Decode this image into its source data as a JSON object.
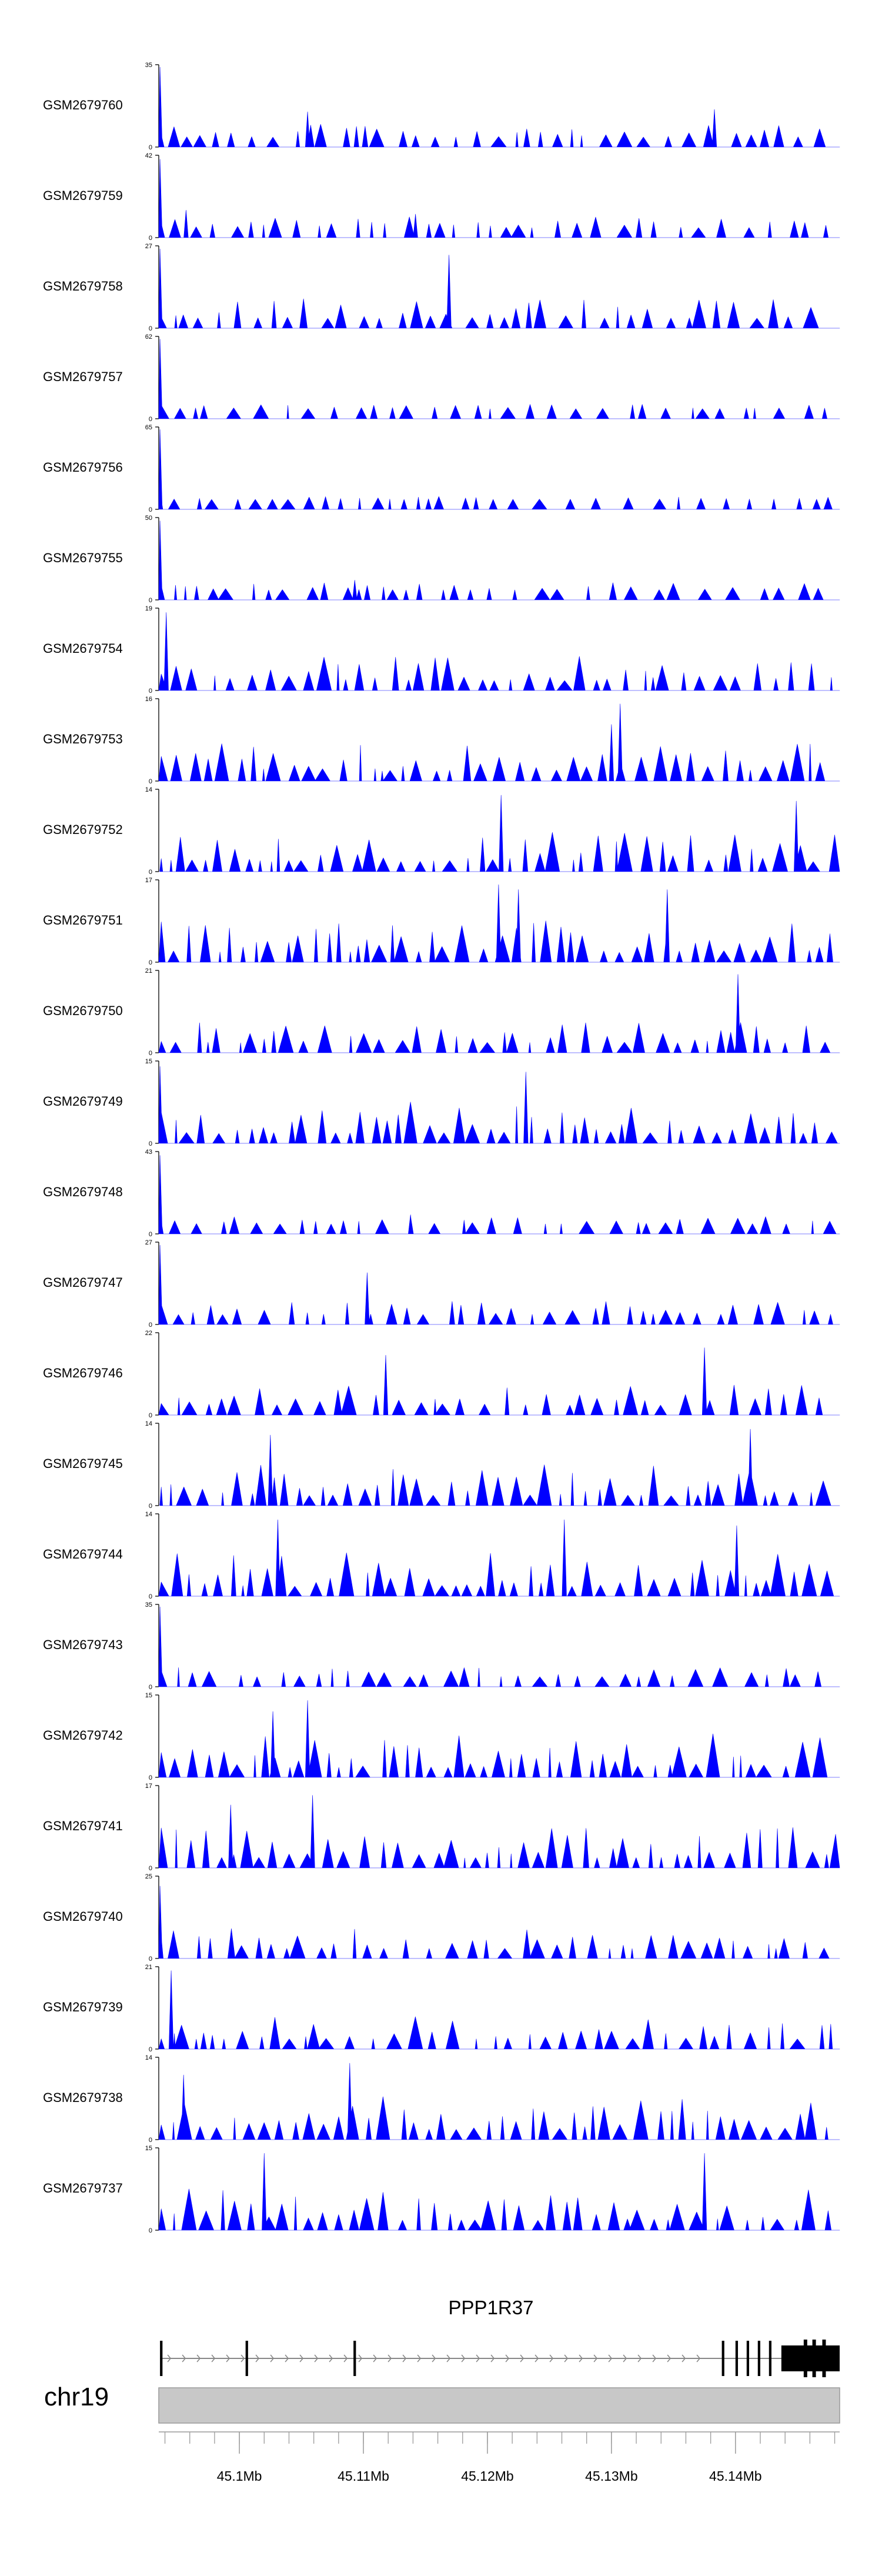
{
  "chart_data": {
    "type": "area",
    "title": "",
    "chromosome": "chr19",
    "xlim": [
      45.0935,
      45.1484
    ],
    "x_unit": "Mb",
    "x_ticks": [
      {
        "value": 45.1,
        "label": "45.1Mb"
      },
      {
        "value": 45.11,
        "label": "45.11Mb"
      },
      {
        "value": 45.12,
        "label": "45.12Mb"
      },
      {
        "value": 45.13,
        "label": "45.13Mb"
      },
      {
        "value": 45.14,
        "label": "45.14Mb"
      }
    ],
    "y_tick_zero_label": "0",
    "track_color": "#0000ff",
    "tracks": [
      {
        "name": "GSM2679760",
        "ymax": 35,
        "ylabel": "35",
        "seed": 11,
        "spikes": [
          {
            "x": 45.0936,
            "y": 34
          },
          {
            "x": 45.1055,
            "y": 15
          },
          {
            "x": 45.1383,
            "y": 16
          }
        ],
        "quiet": 0.3
      },
      {
        "name": "GSM2679759",
        "ymax": 42,
        "ylabel": "42",
        "seed": 23,
        "spikes": [
          {
            "x": 45.0936,
            "y": 40
          },
          {
            "x": 45.0957,
            "y": 14
          },
          {
            "x": 45.1142,
            "y": 12
          }
        ],
        "quiet": 0.25
      },
      {
        "name": "GSM2679758",
        "ymax": 27,
        "ylabel": "27",
        "seed": 37,
        "spikes": [
          {
            "x": 45.0936,
            "y": 26
          },
          {
            "x": 45.1169,
            "y": 24
          }
        ],
        "quiet": 0.45
      },
      {
        "name": "GSM2679757",
        "ymax": 62,
        "ylabel": "62",
        "seed": 41,
        "spikes": [
          {
            "x": 45.0936,
            "y": 60
          }
        ],
        "quiet": 0.1
      },
      {
        "name": "GSM2679756",
        "ymax": 65,
        "ylabel": "65",
        "seed": 53,
        "spikes": [
          {
            "x": 45.0936,
            "y": 63
          }
        ],
        "quiet": 0.08
      },
      {
        "name": "GSM2679755",
        "ymax": 50,
        "ylabel": "50",
        "seed": 67,
        "spikes": [
          {
            "x": 45.0936,
            "y": 48
          },
          {
            "x": 45.1093,
            "y": 12
          }
        ],
        "quiet": 0.18
      },
      {
        "name": "GSM2679754",
        "ymax": 19,
        "ylabel": "19",
        "seed": 71,
        "spikes": [
          {
            "x": 45.0941,
            "y": 18
          }
        ],
        "quiet": 0.55
      },
      {
        "name": "GSM2679753",
        "ymax": 16,
        "ylabel": "16",
        "seed": 83,
        "spikes": [
          {
            "x": 45.1307,
            "y": 15
          },
          {
            "x": 45.13,
            "y": 11
          }
        ],
        "quiet": 0.65
      },
      {
        "name": "GSM2679752",
        "ymax": 14,
        "ylabel": "14",
        "seed": 97,
        "spikes": [
          {
            "x": 45.1211,
            "y": 13
          },
          {
            "x": 45.1449,
            "y": 12
          }
        ],
        "quiet": 0.7
      },
      {
        "name": "GSM2679751",
        "ymax": 17,
        "ylabel": "17",
        "seed": 101,
        "spikes": [
          {
            "x": 45.1209,
            "y": 16
          },
          {
            "x": 45.1225,
            "y": 15
          },
          {
            "x": 45.1345,
            "y": 15
          }
        ],
        "quiet": 0.7
      },
      {
        "name": "GSM2679750",
        "ymax": 21,
        "ylabel": "21",
        "seed": 113,
        "spikes": [
          {
            "x": 45.1402,
            "y": 20
          }
        ],
        "quiet": 0.45
      },
      {
        "name": "GSM2679749",
        "ymax": 15,
        "ylabel": "15",
        "seed": 127,
        "spikes": [
          {
            "x": 45.0936,
            "y": 14
          },
          {
            "x": 45.1231,
            "y": 13
          }
        ],
        "quiet": 0.7
      },
      {
        "name": "GSM2679748",
        "ymax": 43,
        "ylabel": "43",
        "seed": 131,
        "spikes": [
          {
            "x": 45.0936,
            "y": 41
          },
          {
            "x": 45.1138,
            "y": 10
          }
        ],
        "quiet": 0.18
      },
      {
        "name": "GSM2679747",
        "ymax": 27,
        "ylabel": "27",
        "seed": 149,
        "spikes": [
          {
            "x": 45.0936,
            "y": 26
          },
          {
            "x": 45.1103,
            "y": 17
          }
        ],
        "quiet": 0.3
      },
      {
        "name": "GSM2679746",
        "ymax": 22,
        "ylabel": "22",
        "seed": 151,
        "spikes": [
          {
            "x": 45.1118,
            "y": 16
          },
          {
            "x": 45.1375,
            "y": 18
          }
        ],
        "quiet": 0.45
      },
      {
        "name": "GSM2679745",
        "ymax": 14,
        "ylabel": "14",
        "seed": 163,
        "spikes": [
          {
            "x": 45.1412,
            "y": 13
          },
          {
            "x": 45.1025,
            "y": 12
          }
        ],
        "quiet": 0.75
      },
      {
        "name": "GSM2679744",
        "ymax": 14,
        "ylabel": "14",
        "seed": 173,
        "spikes": [
          {
            "x": 45.1031,
            "y": 13
          },
          {
            "x": 45.1262,
            "y": 13
          },
          {
            "x": 45.1401,
            "y": 12
          }
        ],
        "quiet": 0.75
      },
      {
        "name": "GSM2679743",
        "ymax": 35,
        "ylabel": "35",
        "seed": 181,
        "spikes": [
          {
            "x": 45.0936,
            "y": 34
          }
        ],
        "quiet": 0.22
      },
      {
        "name": "GSM2679742",
        "ymax": 15,
        "ylabel": "15",
        "seed": 191,
        "spikes": [
          {
            "x": 45.1055,
            "y": 14
          },
          {
            "x": 45.1027,
            "y": 12
          }
        ],
        "quiet": 0.75
      },
      {
        "name": "GSM2679741",
        "ymax": 17,
        "ylabel": "17",
        "seed": 193,
        "spikes": [
          {
            "x": 45.1059,
            "y": 15
          },
          {
            "x": 45.0993,
            "y": 13
          }
        ],
        "quiet": 0.7
      },
      {
        "name": "GSM2679740",
        "ymax": 25,
        "ylabel": "25",
        "seed": 197,
        "spikes": [
          {
            "x": 45.0936,
            "y": 22
          }
        ],
        "quiet": 0.45
      },
      {
        "name": "GSM2679739",
        "ymax": 21,
        "ylabel": "21",
        "seed": 199,
        "spikes": [
          {
            "x": 45.0945,
            "y": 20
          }
        ],
        "quiet": 0.5
      },
      {
        "name": "GSM2679738",
        "ymax": 14,
        "ylabel": "14",
        "seed": 211,
        "spikes": [
          {
            "x": 45.1089,
            "y": 13
          },
          {
            "x": 45.0955,
            "y": 11
          }
        ],
        "quiet": 0.75
      },
      {
        "name": "GSM2679737",
        "ymax": 15,
        "ylabel": "15",
        "seed": 223,
        "spikes": [
          {
            "x": 45.102,
            "y": 14
          },
          {
            "x": 45.1375,
            "y": 14
          }
        ],
        "quiet": 0.75
      }
    ],
    "gene_track": {
      "gene_name": "PPP1R37",
      "strand": "+",
      "start": 45.0936,
      "end": 45.1484,
      "exons": [
        {
          "start": 45.0936,
          "end": 45.0938
        },
        {
          "start": 45.1005,
          "end": 45.1007
        },
        {
          "start": 45.1092,
          "end": 45.1094
        },
        {
          "start": 45.1389,
          "end": 45.1391
        },
        {
          "start": 45.14,
          "end": 45.1402
        },
        {
          "start": 45.1409,
          "end": 45.1411
        },
        {
          "start": 45.1418,
          "end": 45.142
        },
        {
          "start": 45.1427,
          "end": 45.1429
        },
        {
          "start": 45.1437,
          "end": 45.1484
        }
      ]
    }
  }
}
